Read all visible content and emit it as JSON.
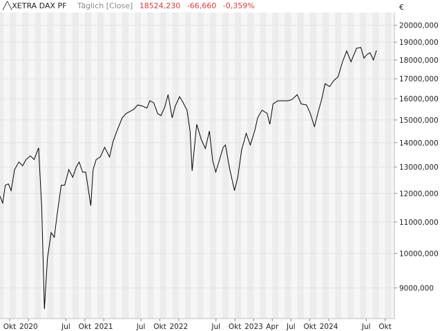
{
  "header": {
    "symbol": "XETRA DAX PF",
    "frequency": "Täglich [Close]",
    "last": "18524,230",
    "change": "-66,660",
    "change_pct": "-0,359%"
  },
  "colors": {
    "line": "#000000",
    "negative": "#e03a3a",
    "band_dark": "#ececec",
    "band_light": "#f6f6f6",
    "grid": "#e3e3e3"
  },
  "chart_data": {
    "type": "line",
    "currency_label": "€",
    "y_scale": "log",
    "ylim": [
      8200,
      20800
    ],
    "yticks": [
      9000,
      10000,
      11000,
      12000,
      13000,
      14000,
      15000,
      16000,
      17000,
      18000,
      19000,
      20000
    ],
    "ytick_labels": [
      "9000,000",
      "10000,000",
      "11000,000",
      "12000,000",
      "13000,000",
      "14000,000",
      "15000,000",
      "16000,000",
      "17000,000",
      "18000,000",
      "19000,000",
      "20000,000"
    ],
    "xlim": [
      "2019-08-15",
      "2024-11-15"
    ],
    "xticks": [
      {
        "date": "2019-10-01",
        "label": "Okt"
      },
      {
        "date": "2020-01-01",
        "label": "2020"
      },
      {
        "date": "2020-07-01",
        "label": "Jul"
      },
      {
        "date": "2020-10-01",
        "label": "Okt"
      },
      {
        "date": "2021-01-01",
        "label": "2021"
      },
      {
        "date": "2021-07-01",
        "label": "Jul"
      },
      {
        "date": "2021-10-01",
        "label": "Okt"
      },
      {
        "date": "2022-01-01",
        "label": "2022"
      },
      {
        "date": "2022-07-01",
        "label": "Jul"
      },
      {
        "date": "2022-10-01",
        "label": "Okt"
      },
      {
        "date": "2023-01-01",
        "label": "2023"
      },
      {
        "date": "2023-04-01",
        "label": "Apr"
      },
      {
        "date": "2023-07-01",
        "label": "Jul"
      },
      {
        "date": "2023-10-01",
        "label": "Okt"
      },
      {
        "date": "2024-01-01",
        "label": "2024"
      },
      {
        "date": "2024-07-01",
        "label": "Jul"
      },
      {
        "date": "2024-10-01",
        "label": "Okt"
      }
    ],
    "series": [
      {
        "x": [
          "2019-08-15",
          "2019-08-28",
          "2019-09-10",
          "2019-09-25",
          "2019-10-08",
          "2019-10-25",
          "2019-11-15",
          "2019-12-03",
          "2019-12-20",
          "2020-01-10",
          "2020-01-28",
          "2020-02-19",
          "2020-03-05",
          "2020-03-18",
          "2020-04-02",
          "2020-04-20",
          "2020-05-05",
          "2020-05-20",
          "2020-06-08",
          "2020-06-25",
          "2020-07-15",
          "2020-08-03",
          "2020-08-20",
          "2020-09-03",
          "2020-09-20",
          "2020-10-05",
          "2020-10-30",
          "2020-11-10",
          "2020-11-25",
          "2020-12-15",
          "2021-01-05",
          "2021-01-29",
          "2021-02-15",
          "2021-03-10",
          "2021-04-01",
          "2021-04-20",
          "2021-05-10",
          "2021-05-28",
          "2021-06-15",
          "2021-07-08",
          "2021-07-30",
          "2021-08-13",
          "2021-09-01",
          "2021-09-20",
          "2021-10-06",
          "2021-10-25",
          "2021-11-10",
          "2021-11-30",
          "2021-12-15",
          "2022-01-05",
          "2022-01-20",
          "2022-02-10",
          "2022-02-25",
          "2022-03-07",
          "2022-03-29",
          "2022-04-20",
          "2022-05-10",
          "2022-05-30",
          "2022-06-15",
          "2022-06-30",
          "2022-07-15",
          "2022-08-05",
          "2022-08-16",
          "2022-09-05",
          "2022-09-29",
          "2022-10-15",
          "2022-11-03",
          "2022-11-25",
          "2022-12-15",
          "2023-01-05",
          "2023-01-20",
          "2023-02-10",
          "2023-03-07",
          "2023-03-20",
          "2023-04-05",
          "2023-04-28",
          "2023-05-20",
          "2023-06-15",
          "2023-07-05",
          "2023-07-31",
          "2023-08-20",
          "2023-09-15",
          "2023-10-03",
          "2023-10-23",
          "2023-11-10",
          "2023-11-28",
          "2023-12-14",
          "2024-01-05",
          "2024-01-25",
          "2024-02-15",
          "2024-03-08",
          "2024-03-28",
          "2024-04-18",
          "2024-05-15",
          "2024-06-05",
          "2024-06-20",
          "2024-07-05",
          "2024-07-20",
          "2024-08-05",
          "2024-08-20"
        ],
        "y": [
          11900,
          11650,
          12300,
          12350,
          12100,
          12900,
          13200,
          13050,
          13300,
          13450,
          13300,
          13780,
          11500,
          8440,
          9850,
          10650,
          10500,
          11300,
          12300,
          12300,
          12900,
          12600,
          13000,
          13200,
          12800,
          12800,
          11560,
          12900,
          13300,
          13400,
          13800,
          13400,
          14050,
          14600,
          15100,
          15300,
          15400,
          15500,
          15700,
          15650,
          15550,
          15900,
          15800,
          15300,
          15200,
          15600,
          16200,
          15100,
          15650,
          16100,
          15850,
          15450,
          14500,
          12850,
          14800,
          14150,
          13750,
          14500,
          13250,
          12800,
          13200,
          13800,
          13900,
          12950,
          12100,
          12600,
          13700,
          14400,
          13900,
          14500,
          15100,
          15450,
          15300,
          14800,
          15750,
          15900,
          15900,
          15900,
          15950,
          16200,
          15750,
          15700,
          15300,
          14700,
          15350,
          16000,
          16750,
          16600,
          16900,
          17100,
          17900,
          18500,
          17900,
          18650,
          18700,
          18100,
          18300,
          18400,
          18000,
          18524
        ]
      }
    ]
  }
}
